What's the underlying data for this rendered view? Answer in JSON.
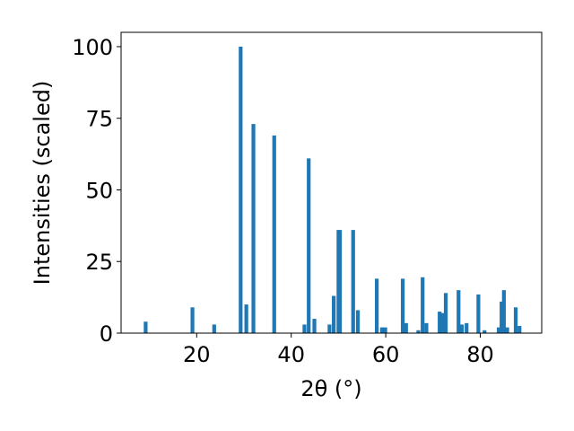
{
  "chart_data": {
    "type": "bar",
    "xlabel": "2θ (°)",
    "ylabel": "Intensities (scaled)",
    "xlim": [
      4.0,
      93.0
    ],
    "ylim": [
      0,
      105
    ],
    "x_ticks": [
      20,
      40,
      60,
      80
    ],
    "y_ticks": [
      0,
      25,
      50,
      75,
      100
    ],
    "grid": false,
    "bar_color": "#1f77b4",
    "bar_width": 0.8,
    "series": [
      {
        "x": [
          9.2,
          19.1,
          23.7,
          29.3,
          30.5,
          32.0,
          36.4,
          39.8,
          42.8,
          43.7,
          44.9,
          48.1,
          49.0,
          50.0,
          50.3,
          53.1,
          54.1,
          58.1,
          59.2,
          59.9,
          63.6,
          64.3,
          66.9,
          67.8,
          68.6,
          71.4,
          72.1,
          72.7,
          75.4,
          76.1,
          77.1,
          79.6,
          80.9,
          83.9,
          84.5,
          85.0,
          85.7,
          87.5,
          88.3
        ],
        "values": [
          4,
          9,
          3,
          100,
          10,
          73,
          69,
          0,
          3,
          61,
          5,
          3,
          13,
          36,
          36,
          36,
          8,
          19,
          2,
          2,
          19,
          3.5,
          1,
          19.5,
          3.5,
          7.5,
          7,
          14,
          15,
          3,
          3.5,
          13.5,
          1,
          2,
          11,
          15,
          2,
          9,
          2.5
        ]
      }
    ]
  }
}
